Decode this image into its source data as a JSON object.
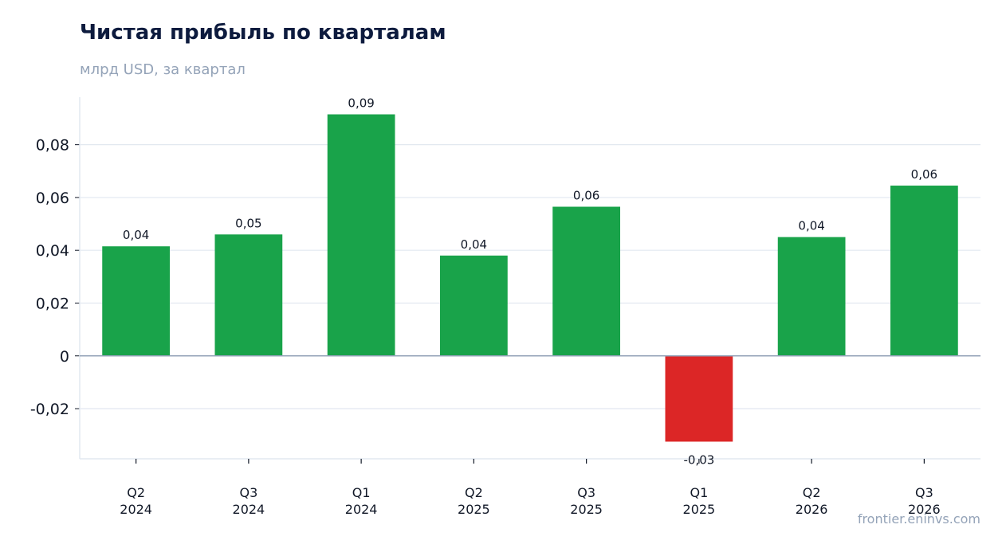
{
  "chart_data": {
    "type": "bar",
    "title": "Чистая прибыль по кварталам",
    "subtitle": "млрд USD, за квартал",
    "xlabel": "",
    "ylabel": "",
    "categories": [
      [
        "Q2",
        "2024"
      ],
      [
        "Q3",
        "2024"
      ],
      [
        "Q1",
        "2024"
      ],
      [
        "Q2",
        "2025"
      ],
      [
        "Q3",
        "2025"
      ],
      [
        "Q1",
        "2025"
      ],
      [
        "Q2",
        "2026"
      ],
      [
        "Q3",
        "2026"
      ]
    ],
    "values": [
      0.0415,
      0.046,
      0.0915,
      0.038,
      0.0565,
      -0.0325,
      0.045,
      0.0645
    ],
    "data_labels": [
      "0,04",
      "0,05",
      "0,09",
      "0,04",
      "0,06",
      "-0,03",
      "0,04",
      "0,06"
    ],
    "yticks": [
      -0.02,
      0,
      0.02,
      0.04,
      0.06,
      0.08
    ],
    "ytick_labels": [
      "-0,02",
      "0",
      "0,02",
      "0,04",
      "0,06",
      "0,08"
    ],
    "ylim": [
      -0.039,
      0.098
    ],
    "grid": true,
    "legend": "none",
    "colors": {
      "positive": "#19a34a",
      "negative": "#dc2626",
      "grid": "#e2e8f0",
      "zero_line": "#94a3b8",
      "axis": "#e2e8f0"
    }
  },
  "watermark": "frontier.eninvs.com"
}
